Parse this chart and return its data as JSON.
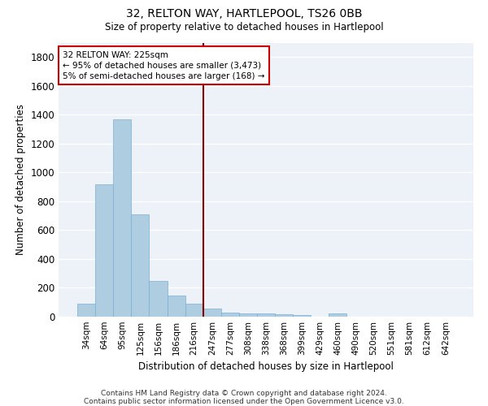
{
  "title1": "32, RELTON WAY, HARTLEPOOL, TS26 0BB",
  "title2": "Size of property relative to detached houses in Hartlepool",
  "xlabel": "Distribution of detached houses by size in Hartlepool",
  "ylabel": "Number of detached properties",
  "categories": [
    "34sqm",
    "64sqm",
    "95sqm",
    "125sqm",
    "156sqm",
    "186sqm",
    "216sqm",
    "247sqm",
    "277sqm",
    "308sqm",
    "338sqm",
    "368sqm",
    "399sqm",
    "429sqm",
    "460sqm",
    "490sqm",
    "520sqm",
    "551sqm",
    "581sqm",
    "612sqm",
    "642sqm"
  ],
  "values": [
    90,
    920,
    1370,
    710,
    250,
    145,
    90,
    55,
    30,
    25,
    20,
    15,
    10,
    0,
    20,
    0,
    0,
    0,
    0,
    0,
    0
  ],
  "bar_color": "#aecde1",
  "bar_edge_color": "#7bafd4",
  "property_line_index": 6,
  "annotation_lines": [
    "32 RELTON WAY: 225sqm",
    "← 95% of detached houses are smaller (3,473)",
    "5% of semi-detached houses are larger (168) →"
  ],
  "annotation_box_color": "#cc0000",
  "vline_color": "#8b0000",
  "ylim": [
    0,
    1900
  ],
  "yticks": [
    0,
    200,
    400,
    600,
    800,
    1000,
    1200,
    1400,
    1600,
    1800
  ],
  "background_color": "#edf2f9",
  "grid_color": "#ffffff",
  "footer1": "Contains HM Land Registry data © Crown copyright and database right 2024.",
  "footer2": "Contains public sector information licensed under the Open Government Licence v3.0."
}
